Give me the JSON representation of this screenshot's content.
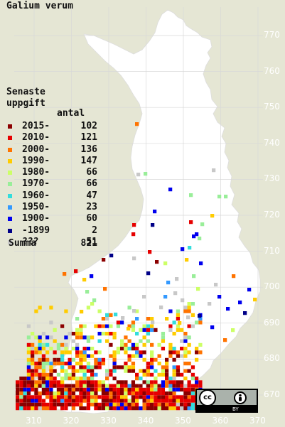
{
  "title": "Galium verum",
  "legend": {
    "title_line1": "Senaste",
    "title_line2": "uppgift",
    "count_header": "antal",
    "items": [
      {
        "label": "2015-",
        "count": "102",
        "color": "#8b0000"
      },
      {
        "label": "2010-",
        "count": "121",
        "color": "#e60000"
      },
      {
        "label": "2000-",
        "count": "136",
        "color": "#ff7300"
      },
      {
        "label": "1990-",
        "count": "147",
        "color": "#ffcc00"
      },
      {
        "label": "1980-",
        "count": "66",
        "color": "#ccff66"
      },
      {
        "label": "1970-",
        "count": "66",
        "color": "#99ee99"
      },
      {
        "label": "1960-",
        "count": "47",
        "color": "#33dddd"
      },
      {
        "label": "1950-",
        "count": "23",
        "color": "#3399ff"
      },
      {
        "label": "1900-",
        "count": "60",
        "color": "#0000ee"
      },
      {
        "label": "-1899",
        "count": "2",
        "color": "#000088"
      },
      {
        "label": "???",
        "count": "51",
        "color": "#c8c8c8"
      }
    ],
    "summa_label": "Summa",
    "summa_value": "821"
  },
  "axes": {
    "northing": [
      "770",
      "760",
      "750",
      "740",
      "730",
      "720",
      "710",
      "700",
      "690",
      "680",
      "670"
    ],
    "easting": [
      "310",
      "320",
      "330",
      "340",
      "350",
      "360",
      "370"
    ]
  },
  "license_badge": {
    "cc_text": "cc",
    "by_text": "BY",
    "person_icon": "person-icon"
  },
  "colors": {
    "background": "#e5e6d4",
    "land": "#ffffff",
    "grid": "#d8d8d8"
  }
}
